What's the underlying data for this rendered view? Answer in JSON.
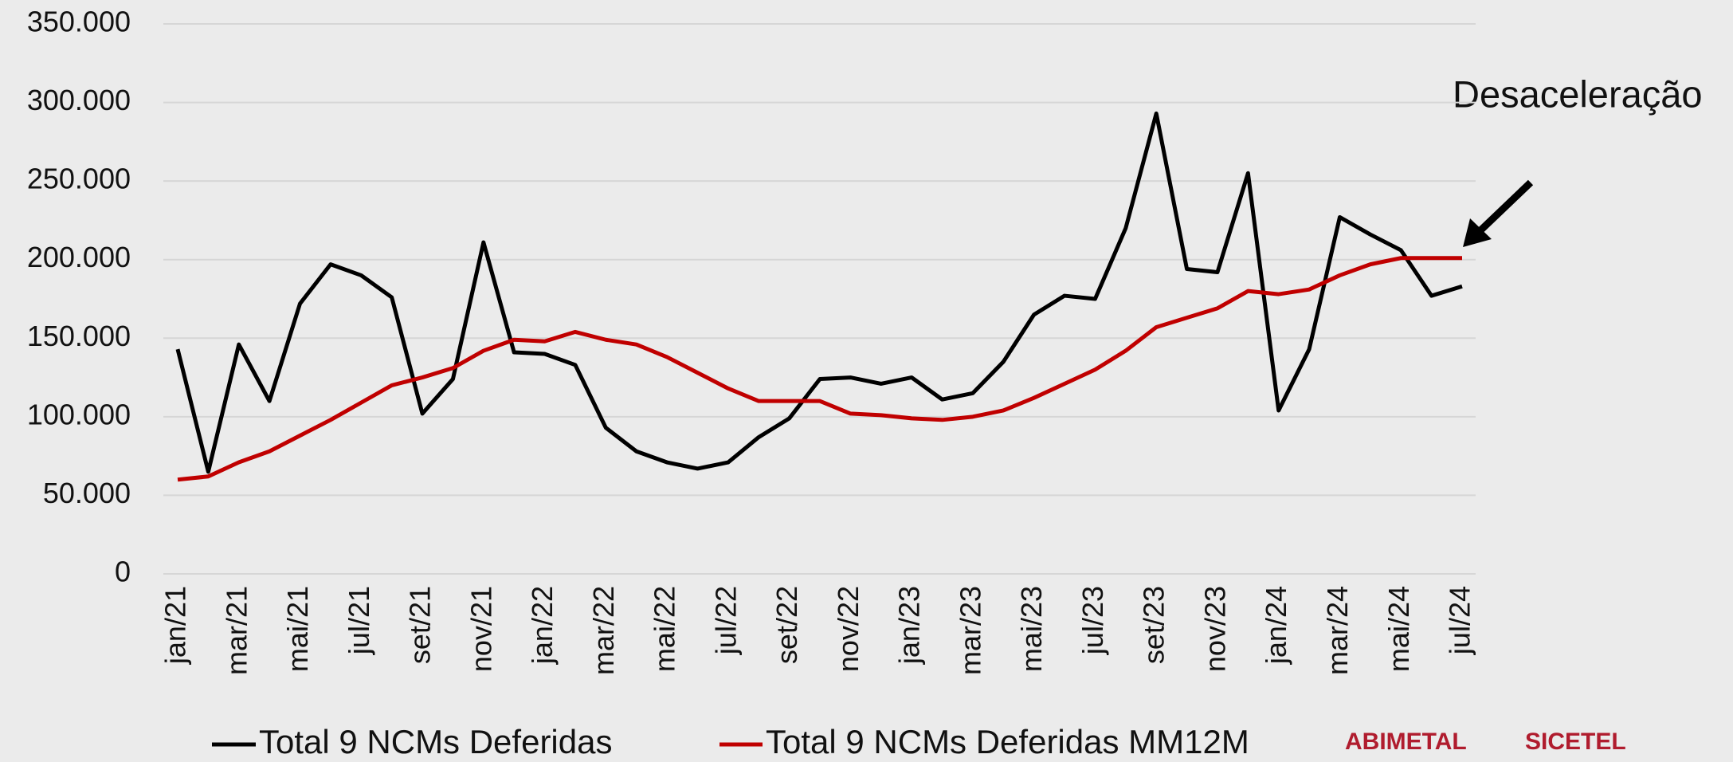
{
  "chart_data": {
    "type": "line",
    "annotation": "Desaceleração",
    "logos": [
      "ABIMETAL",
      "SICETEL"
    ],
    "categories": [
      "jan/21",
      null,
      "mar/21",
      null,
      "mai/21",
      null,
      "jul/21",
      null,
      "set/21",
      null,
      "nov/21",
      null,
      "jan/22",
      null,
      "mar/22",
      null,
      "mai/22",
      null,
      "jul/22",
      null,
      "set/22",
      null,
      "nov/22",
      null,
      "jan/23",
      null,
      "mar/23",
      null,
      "mai/23",
      null,
      "jul/23",
      null,
      "set/23",
      null,
      "nov/23",
      null,
      "jan/24",
      null,
      "mar/24",
      null,
      "mai/24",
      null,
      "jul/24"
    ],
    "series": [
      {
        "name": "Total 9 NCMs Deferidas",
        "color": "#000000",
        "values": [
          143000,
          65000,
          146000,
          110000,
          172000,
          197000,
          190000,
          176000,
          102000,
          124000,
          211000,
          141000,
          140000,
          133000,
          93000,
          78000,
          71000,
          67000,
          71000,
          87000,
          99000,
          124000,
          125000,
          121000,
          125000,
          111000,
          115000,
          135000,
          165000,
          177000,
          175000,
          220000,
          293000,
          194000,
          192000,
          255000,
          104000,
          143000,
          227000,
          216000,
          206000,
          177000,
          183000
        ]
      },
      {
        "name": "Total 9 NCMs Deferidas MM12M",
        "color": "#c00000",
        "values": [
          60000,
          62000,
          71000,
          78000,
          88000,
          98000,
          109000,
          120000,
          125000,
          131000,
          142000,
          149000,
          148000,
          154000,
          149000,
          146000,
          138000,
          128000,
          118000,
          110000,
          110000,
          110000,
          102000,
          101000,
          99000,
          98000,
          100000,
          104000,
          112000,
          121000,
          130000,
          142000,
          157000,
          163000,
          169000,
          180000,
          178000,
          181000,
          190000,
          197000,
          201000,
          201000,
          201000
        ]
      }
    ],
    "ylim": [
      0,
      350000
    ],
    "yticks": [
      0,
      {
        "value": 50000,
        "label": "50.000"
      },
      {
        "value": 100000,
        "label": "100.000"
      },
      {
        "value": 150000,
        "label": "150.000"
      },
      {
        "value": 200000,
        "label": "200.000"
      },
      {
        "value": 250000,
        "label": "250.000"
      },
      {
        "value": 300000,
        "label": "300.000"
      },
      {
        "value": 350000,
        "label": "350.000"
      }
    ],
    "grid": true
  }
}
